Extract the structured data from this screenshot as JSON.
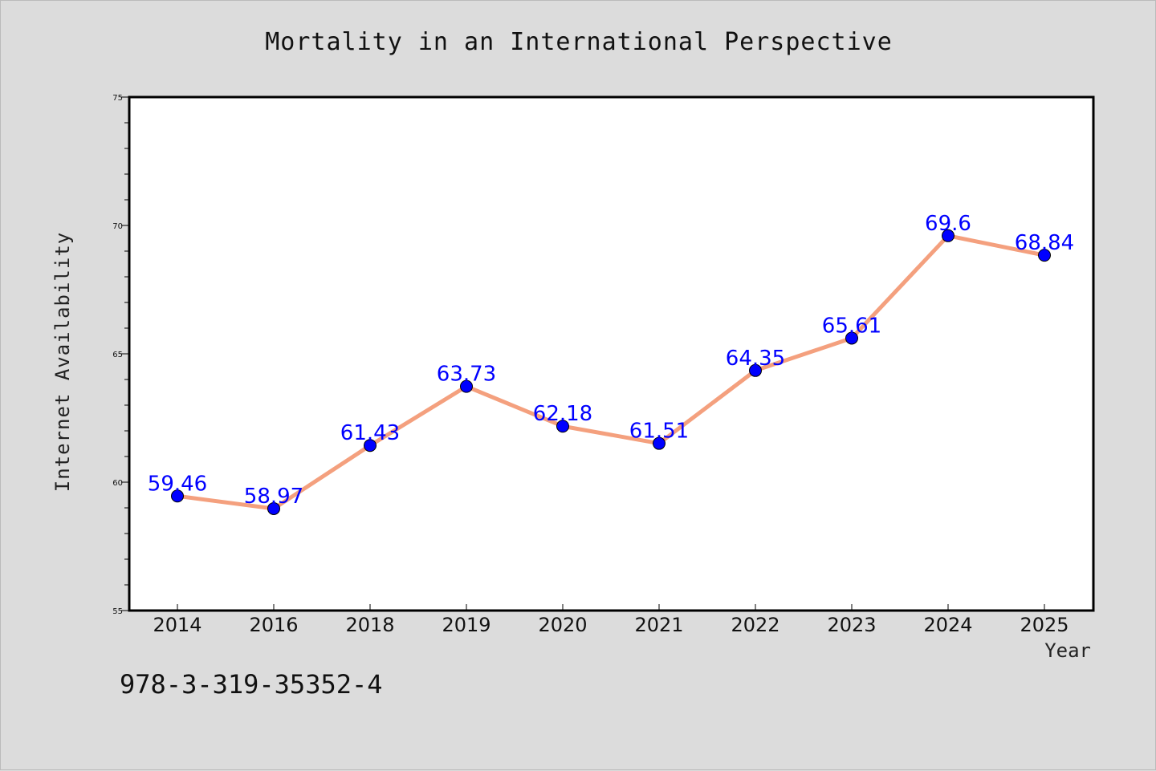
{
  "title": "Mortality in an International Perspective",
  "footer_text": "978-3-319-35352-4",
  "chart_data": {
    "type": "line",
    "title": "Mortality in an International Perspective",
    "xlabel": "Year",
    "ylabel": "Internet Availability",
    "categories": [
      "2014",
      "2016",
      "2018",
      "2019",
      "2020",
      "2021",
      "2022",
      "2023",
      "2024",
      "2025"
    ],
    "series": [
      {
        "values": [
          59.46,
          58.97,
          61.43,
          63.73,
          62.18,
          61.51,
          64.35,
          65.61,
          69.6,
          68.84
        ],
        "labels": [
          "59.46",
          "58.97",
          "61.43",
          "63.73",
          "62.18",
          "61.51",
          "64.35",
          "65.61",
          "69.6",
          "68.84"
        ],
        "line_color": "#f4a07e",
        "marker_color": "#0000ff",
        "label_color": "#0000ff"
      }
    ],
    "ylim": [
      55,
      75
    ],
    "yticks": [
      55,
      60,
      65,
      70,
      75
    ],
    "grid": false,
    "legend": "none"
  }
}
